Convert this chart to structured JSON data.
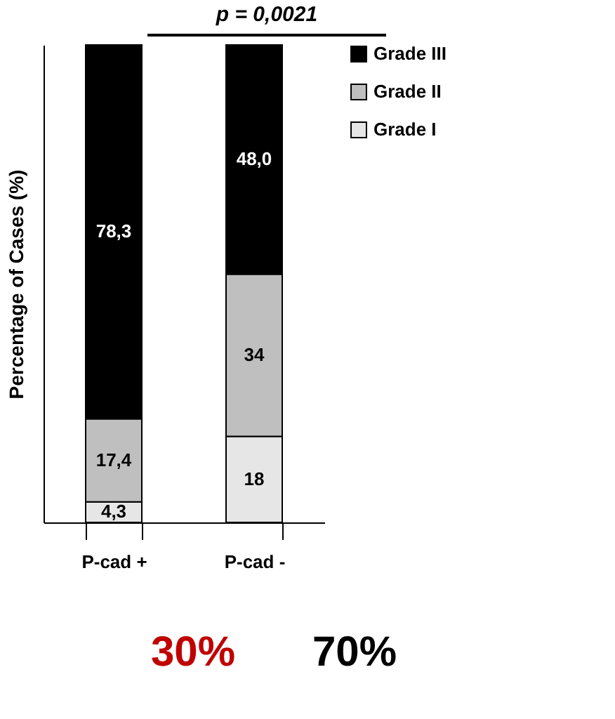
{
  "chart_data": {
    "type": "bar",
    "stacked": true,
    "categories": [
      "P-cad +",
      "P-cad -"
    ],
    "ylabel": "Percentage of Cases (%)",
    "series": [
      {
        "name": "Grade I",
        "color": "#e6e6e6",
        "values": [
          4.3,
          18
        ],
        "value_labels": [
          "4,3",
          "18"
        ]
      },
      {
        "name": "Grade II",
        "color": "#bfbfbf",
        "values": [
          17.4,
          34
        ],
        "value_labels": [
          "17,4",
          "34"
        ]
      },
      {
        "name": "Grade III",
        "color": "#000000",
        "values": [
          78.3,
          48.0
        ],
        "value_labels": [
          "78,3",
          "48,0"
        ]
      }
    ],
    "legend": "right",
    "grid": false,
    "annotations": [
      "p = 0,0021",
      "30%",
      "70%"
    ]
  }
}
